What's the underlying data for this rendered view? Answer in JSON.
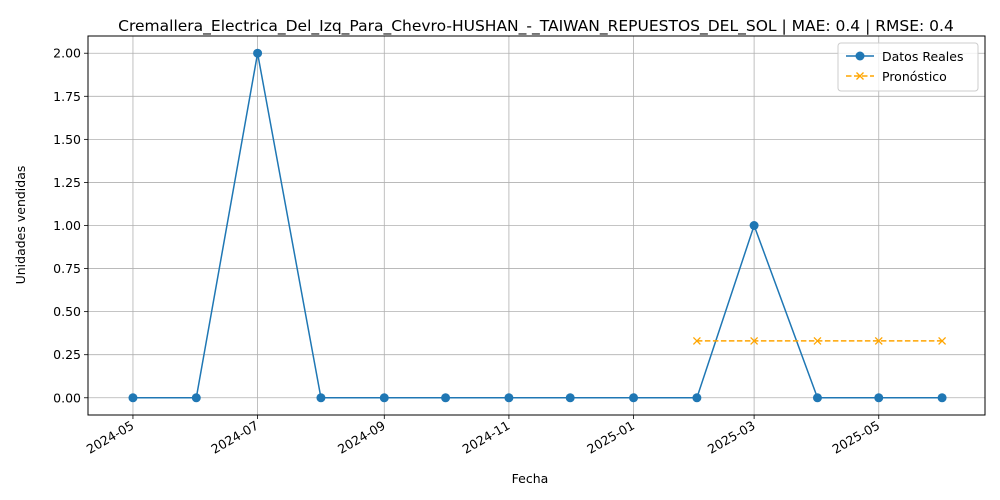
{
  "chart_data": {
    "type": "line",
    "title": "Cremallera_Electrica_Del_Izq_Para_Chevro-HUSHAN_-_TAIWAN_REPUESTOS_DEL_SOL | MAE: 0.4 | RMSE: 0.4",
    "xlabel": "Fecha",
    "ylabel": "Unidades vendidas",
    "x_range": [
      "2024-04-09",
      "2025-06-22"
    ],
    "ylim": [
      -0.1,
      2.1
    ],
    "x_ticks": [
      "2024-05",
      "2024-07",
      "2024-09",
      "2024-11",
      "2025-01",
      "2025-03",
      "2025-05"
    ],
    "x_tick_dates": [
      "2024-05-01",
      "2024-07-01",
      "2024-09-01",
      "2024-11-01",
      "2025-01-01",
      "2025-03-01",
      "2025-05-01"
    ],
    "y_ticks": [
      "0.00",
      "0.25",
      "0.50",
      "0.75",
      "1.00",
      "1.25",
      "1.50",
      "1.75",
      "2.00"
    ],
    "y_tick_values": [
      0,
      0.25,
      0.5,
      0.75,
      1.0,
      1.25,
      1.5,
      1.75,
      2.0
    ],
    "grid": true,
    "legend_position": "top-right",
    "series": [
      {
        "name": "Datos Reales",
        "color": "#1f77b4",
        "marker": "circle",
        "line_style": "solid",
        "x": [
          "2024-05-01",
          "2024-06-01",
          "2024-07-01",
          "2024-08-01",
          "2024-09-01",
          "2024-10-01",
          "2024-11-01",
          "2024-12-01",
          "2025-01-01",
          "2025-02-01",
          "2025-03-01",
          "2025-04-01",
          "2025-05-01",
          "2025-06-01"
        ],
        "values": [
          0,
          0,
          2,
          0,
          0,
          0,
          0,
          0,
          0,
          0,
          1,
          0,
          0,
          0
        ]
      },
      {
        "name": "Pronóstico",
        "color": "#ffa500",
        "marker": "x",
        "line_style": "dashed",
        "x": [
          "2025-02-01",
          "2025-03-01",
          "2025-04-01",
          "2025-05-01",
          "2025-06-01"
        ],
        "values": [
          0.33,
          0.33,
          0.33,
          0.33,
          0.33
        ]
      }
    ]
  }
}
